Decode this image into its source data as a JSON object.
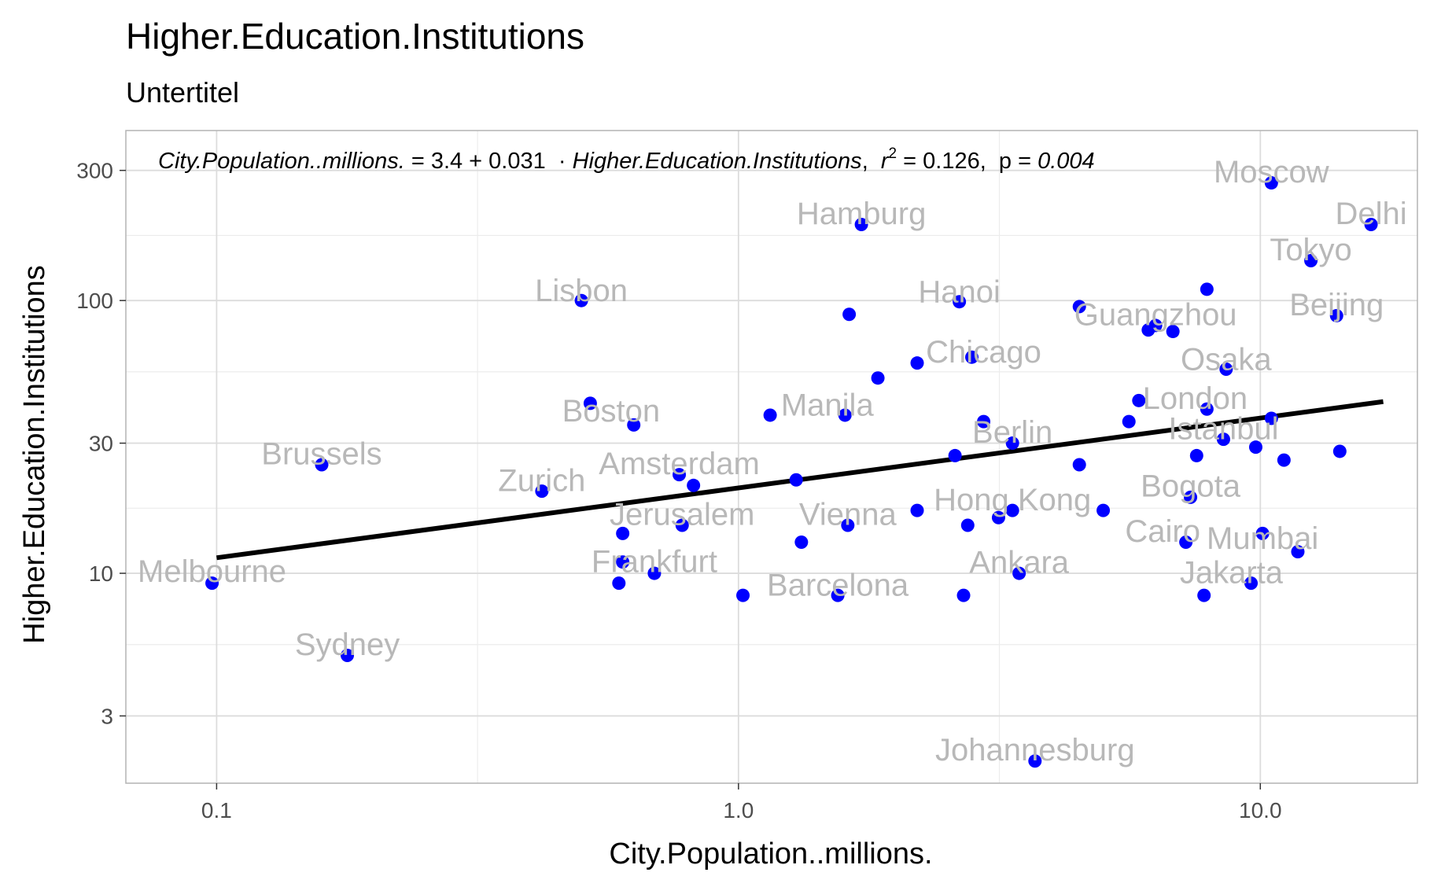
{
  "chart_data": {
    "type": "scatter",
    "title": "Higher.Education.Institutions",
    "subtitle": "Untertitel",
    "xlabel": "City.Population..millions.",
    "ylabel": "Higher.Education.Institutions",
    "x_scale": "log10",
    "y_scale": "log10",
    "xlim": [
      0.067,
      20
    ],
    "ylim": [
      1.7,
      420
    ],
    "x_ticks": [
      0.1,
      1.0,
      10.0
    ],
    "x_tick_labels": [
      "0.1",
      "1.0",
      "10.0"
    ],
    "y_ticks": [
      3,
      10,
      30,
      100,
      300
    ],
    "y_tick_labels": [
      "3",
      "10",
      "30",
      "100",
      "300"
    ],
    "grid": true,
    "point_color": "#0000ff",
    "label_color": "#b8b8b8",
    "fit_line": {
      "x": [
        0.1,
        17.2
      ],
      "y": [
        11.4,
        42.6
      ],
      "color": "#000000"
    },
    "annotation": {
      "lhs": "City.Population..millions.",
      "eq_part": " = 3.4 + 0.031  · ",
      "rhs": "Higher.Education.Institutions",
      "r_symbol": "r",
      "r_exp": "2",
      "r_value": " = 0.126,  ",
      "p_symbol": "p",
      "p_eq": " = ",
      "p_value": "0.004"
    },
    "points": [
      {
        "x": 0.098,
        "y": 9.2
      },
      {
        "x": 0.159,
        "y": 25
      },
      {
        "x": 0.178,
        "y": 5.0
      },
      {
        "x": 0.42,
        "y": 20
      },
      {
        "x": 0.5,
        "y": 100
      },
      {
        "x": 0.52,
        "y": 42
      },
      {
        "x": 0.6,
        "y": 14
      },
      {
        "x": 0.6,
        "y": 11
      },
      {
        "x": 0.59,
        "y": 9.2
      },
      {
        "x": 0.63,
        "y": 35
      },
      {
        "x": 0.69,
        "y": 10
      },
      {
        "x": 0.77,
        "y": 23
      },
      {
        "x": 0.78,
        "y": 15
      },
      {
        "x": 0.82,
        "y": 21
      },
      {
        "x": 1.02,
        "y": 8.3
      },
      {
        "x": 1.15,
        "y": 38
      },
      {
        "x": 1.29,
        "y": 22
      },
      {
        "x": 1.32,
        "y": 13
      },
      {
        "x": 1.55,
        "y": 8.3
      },
      {
        "x": 1.6,
        "y": 38
      },
      {
        "x": 1.62,
        "y": 15
      },
      {
        "x": 1.63,
        "y": 89
      },
      {
        "x": 1.72,
        "y": 190
      },
      {
        "x": 1.85,
        "y": 52
      },
      {
        "x": 2.2,
        "y": 17
      },
      {
        "x": 2.2,
        "y": 59
      },
      {
        "x": 2.6,
        "y": 27
      },
      {
        "x": 2.65,
        "y": 99
      },
      {
        "x": 2.7,
        "y": 8.3
      },
      {
        "x": 2.75,
        "y": 15
      },
      {
        "x": 2.8,
        "y": 62
      },
      {
        "x": 2.95,
        "y": 36
      },
      {
        "x": 3.15,
        "y": 16
      },
      {
        "x": 3.35,
        "y": 17
      },
      {
        "x": 3.35,
        "y": 30
      },
      {
        "x": 3.45,
        "y": 10
      },
      {
        "x": 3.7,
        "y": 2.05
      },
      {
        "x": 4.5,
        "y": 25
      },
      {
        "x": 4.5,
        "y": 95
      },
      {
        "x": 5.0,
        "y": 17
      },
      {
        "x": 5.6,
        "y": 36
      },
      {
        "x": 5.85,
        "y": 43
      },
      {
        "x": 6.1,
        "y": 78
      },
      {
        "x": 6.3,
        "y": 81
      },
      {
        "x": 6.8,
        "y": 77
      },
      {
        "x": 7.35,
        "y": 19
      },
      {
        "x": 7.2,
        "y": 13
      },
      {
        "x": 7.55,
        "y": 27
      },
      {
        "x": 7.8,
        "y": 8.3
      },
      {
        "x": 7.9,
        "y": 110
      },
      {
        "x": 7.9,
        "y": 40
      },
      {
        "x": 8.5,
        "y": 31
      },
      {
        "x": 8.6,
        "y": 56
      },
      {
        "x": 9.6,
        "y": 9.2
      },
      {
        "x": 9.8,
        "y": 29
      },
      {
        "x": 10.1,
        "y": 14
      },
      {
        "x": 10.5,
        "y": 270
      },
      {
        "x": 10.5,
        "y": 37
      },
      {
        "x": 11.1,
        "y": 26
      },
      {
        "x": 11.8,
        "y": 12
      },
      {
        "x": 12.5,
        "y": 140
      },
      {
        "x": 14.0,
        "y": 88
      },
      {
        "x": 14.2,
        "y": 28
      },
      {
        "x": 16.3,
        "y": 190
      }
    ],
    "labels": [
      {
        "text": "Melbourne",
        "x": 0.098,
        "y": 10.2
      },
      {
        "text": "Brussels",
        "x": 0.159,
        "y": 27.5
      },
      {
        "text": "Sydney",
        "x": 0.178,
        "y": 5.5
      },
      {
        "text": "Zurich",
        "x": 0.42,
        "y": 22
      },
      {
        "text": "Lisbon",
        "x": 0.5,
        "y": 109
      },
      {
        "text": "Boston",
        "x": 0.57,
        "y": 39.5
      },
      {
        "text": "Amsterdam",
        "x": 0.77,
        "y": 25.3
      },
      {
        "text": "Jerusalem",
        "x": 0.78,
        "y": 16.5
      },
      {
        "text": "Frankfurt",
        "x": 0.69,
        "y": 11.1
      },
      {
        "text": "Barcelona",
        "x": 1.55,
        "y": 9.1
      },
      {
        "text": "Manila",
        "x": 1.48,
        "y": 41.5
      },
      {
        "text": "Vienna",
        "x": 1.62,
        "y": 16.5
      },
      {
        "text": "Hamburg",
        "x": 1.72,
        "y": 209
      },
      {
        "text": "Hanoi",
        "x": 2.65,
        "y": 108
      },
      {
        "text": "Chicago",
        "x": 2.95,
        "y": 65
      },
      {
        "text": "Berlin",
        "x": 3.35,
        "y": 33
      },
      {
        "text": "Hong Kong",
        "x": 3.35,
        "y": 18.7
      },
      {
        "text": "Ankara",
        "x": 3.45,
        "y": 11
      },
      {
        "text": "Johannesburg",
        "x": 3.7,
        "y": 2.26
      },
      {
        "text": "Guangzhou",
        "x": 6.3,
        "y": 89
      },
      {
        "text": "London",
        "x": 7.5,
        "y": 44
      },
      {
        "text": "Osaka",
        "x": 8.6,
        "y": 61
      },
      {
        "text": "Istanbul",
        "x": 8.5,
        "y": 34
      },
      {
        "text": "Bogota",
        "x": 7.35,
        "y": 21
      },
      {
        "text": "Cairo",
        "x": 6.5,
        "y": 14.3
      },
      {
        "text": "Mumbai",
        "x": 10.1,
        "y": 13.5
      },
      {
        "text": "Jakarta",
        "x": 8.8,
        "y": 10.1
      },
      {
        "text": "Moscow",
        "x": 10.5,
        "y": 297
      },
      {
        "text": "Delhi",
        "x": 16.3,
        "y": 209
      },
      {
        "text": "Tokyo",
        "x": 12.5,
        "y": 154
      },
      {
        "text": "Beijing",
        "x": 14.0,
        "y": 97
      }
    ]
  }
}
